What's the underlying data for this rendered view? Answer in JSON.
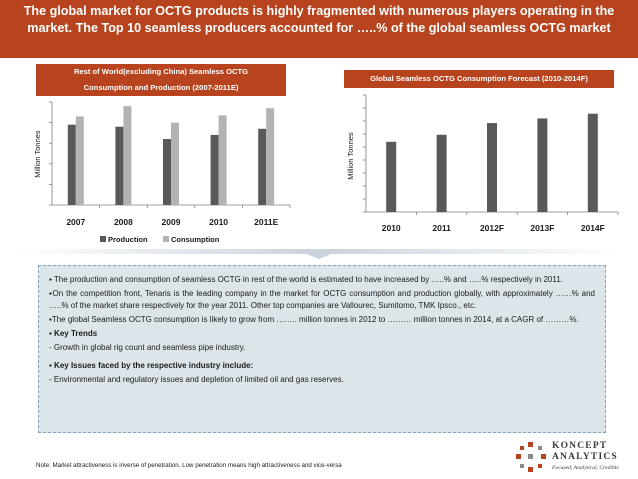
{
  "header": {
    "title": "The global market for OCTG products is highly fragmented with numerous players operating in the market. The Top 10 seamless producers accounted for …..% of the global seamless OCTG market"
  },
  "colors": {
    "banner": "#b7441e",
    "production": "#595959",
    "consumption": "#b3b3b3",
    "forecast": "#595959",
    "info_box_bg": "#dce5ea"
  },
  "chart_data": [
    {
      "type": "bar",
      "title_line1": "Rest of World(excluding China) Seamless OCTG",
      "title_line2": "Consumption and Production (2007-2011E)",
      "ylabel": "Million Tonnes",
      "categories": [
        "2007",
        "2008",
        "2009",
        "2010",
        "2011E"
      ],
      "series": [
        {
          "name": "Production",
          "values": [
            7.8,
            7.6,
            6.4,
            6.8,
            7.4
          ]
        },
        {
          "name": "Consumption",
          "values": [
            8.6,
            9.6,
            8.0,
            8.7,
            9.4
          ]
        }
      ],
      "ylim": [
        0,
        10
      ],
      "legend": "bottom",
      "grid": false
    },
    {
      "type": "bar",
      "title": "Global Seamless OCTG Consumption Forecast (2010-2014F)",
      "ylabel": "Million Tonnes",
      "categories": [
        "2010",
        "2011",
        "2012F",
        "2013F",
        "2014F"
      ],
      "series": [
        {
          "values": [
            6.0,
            6.6,
            7.6,
            8.0,
            8.4
          ]
        }
      ],
      "ylim": [
        0,
        10
      ],
      "grid": false
    }
  ],
  "info": {
    "bullet1": "▪ The production and consumption of seamless OCTG in rest of the world is estimated to have increased by …..% and …..% respectively in 2011.",
    "bullet2": "▪On the competition front, Tenaris is the leading company in the market for OCTG consumption and production globally, with approximately ……% and …..% of the market share respectively for the year 2011. Other top companies are Vallourec, Sumitomo, TMK Ipsco., etc.",
    "bullet3": "▪The global Seamless OCTG consumption is likely to grow from …….. million tonnes in 2012 to ……… million tonnes in 2014, at a CAGR of ………%.",
    "key_trends_heading": "▪ Key Trends",
    "key_trends_text": "- Growth in global rig count and seamless pipe industry.",
    "key_issues_heading": "▪ Key Issues faced by the respective industry include:",
    "key_issues_text": "- Environmental and regulatory issues and depletion of limited oil and gas reserves."
  },
  "footer": {
    "note": "Note: Market attractiveness is inverse of penetration. Low penetration means high attractiveness and vice-versa"
  },
  "logo": {
    "name_line1": "KONCEPT",
    "name_line2": "ANALYTICS",
    "tagline": "Focused, Analytical, Credible"
  }
}
